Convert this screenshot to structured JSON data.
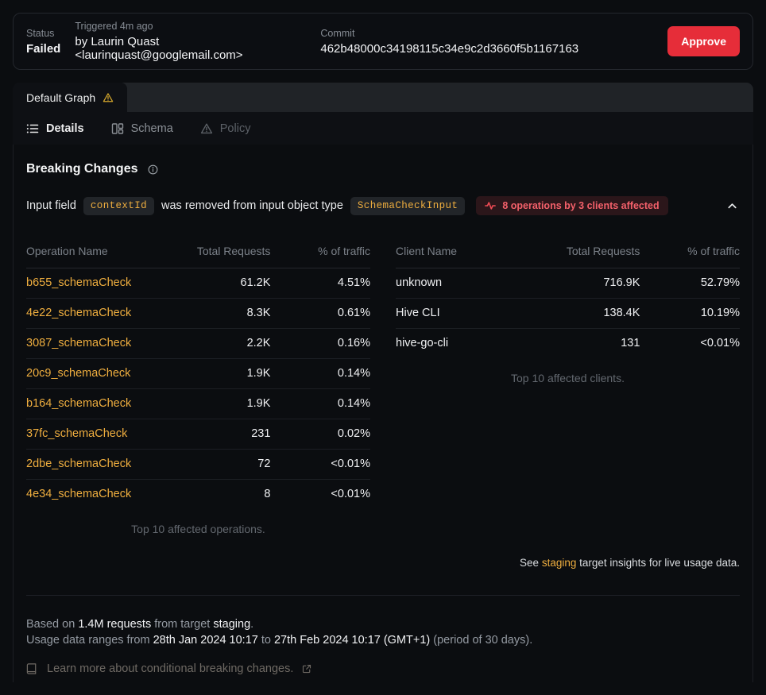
{
  "colors": {
    "accent_yellow": "#efae3f",
    "approve_red": "#e62d39",
    "badge_bg": "#2b161a",
    "badge_text": "#f3606a",
    "warning_yellow": "#d4a72c"
  },
  "status_bar": {
    "status_label": "Status",
    "status_value": "Failed",
    "triggered_label": "Triggered 4m ago",
    "triggered_value": "by Laurin Quast <laurinquast@googlemail.com>",
    "commit_label": "Commit",
    "commit_value": "462b48000c34198115c34e9c2d3660f5b1167163",
    "approve_label": "Approve"
  },
  "graph_tabs": {
    "active_tab": "Default Graph"
  },
  "nav": {
    "details": "Details",
    "schema": "Schema",
    "policy": "Policy"
  },
  "breaking_changes": {
    "title": "Breaking Changes",
    "change": {
      "prefix": "Input field",
      "field": "contextId",
      "middle": "was removed from input object type",
      "type": "SchemaCheckInput",
      "badge": "8 operations by 3 clients affected"
    }
  },
  "tables": {
    "operations": {
      "columns": [
        "Operation Name",
        "Total Requests",
        "% of traffic"
      ],
      "rows": [
        [
          "b655_schemaCheck",
          "61.2K",
          "4.51%"
        ],
        [
          "4e22_schemaCheck",
          "8.3K",
          "0.61%"
        ],
        [
          "3087_schemaCheck",
          "2.2K",
          "0.16%"
        ],
        [
          "20c9_schemaCheck",
          "1.9K",
          "0.14%"
        ],
        [
          "b164_schemaCheck",
          "1.9K",
          "0.14%"
        ],
        [
          "37fc_schemaCheck",
          "231",
          "0.02%"
        ],
        [
          "2dbe_schemaCheck",
          "72",
          "<0.01%"
        ],
        [
          "4e34_schemaCheck",
          "8",
          "<0.01%"
        ]
      ],
      "caption": "Top 10 affected operations."
    },
    "clients": {
      "columns": [
        "Client Name",
        "Total Requests",
        "% of traffic"
      ],
      "rows": [
        [
          "unknown",
          "716.9K",
          "52.79%"
        ],
        [
          "Hive CLI",
          "138.4K",
          "10.19%"
        ],
        [
          "hive-go-cli",
          "131",
          "<0.01%"
        ]
      ],
      "caption": "Top 10 affected clients."
    }
  },
  "insights_note": {
    "prefix": "See ",
    "link": "staging",
    "suffix": " target insights for live usage data."
  },
  "footer": {
    "line1": {
      "s1": "Based on ",
      "s2": "1.4M requests",
      "s3": " from target ",
      "s4": "staging",
      "s5": "."
    },
    "line2": {
      "s1": "Usage data ranges from ",
      "s2": "28th Jan 2024 10:17",
      "s3": " to ",
      "s4": "27th Feb 2024 10:17 (GMT+1)",
      "s5": " (period of 30 days)."
    },
    "learn_more": "Learn more about conditional breaking changes."
  }
}
